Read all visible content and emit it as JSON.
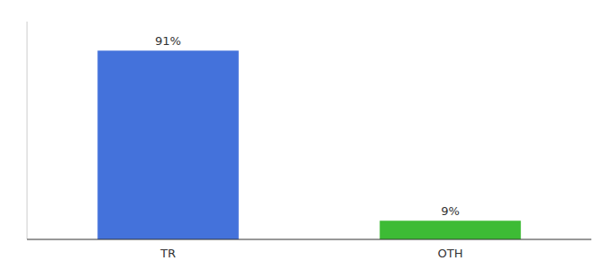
{
  "chart_data": {
    "type": "bar",
    "categories": [
      "TR",
      "OTH"
    ],
    "values": [
      91,
      9
    ],
    "value_labels": [
      "91%",
      "9%"
    ],
    "colors": [
      "#4472db",
      "#3dbb35"
    ],
    "ylim": [
      0,
      105
    ],
    "yticks": [],
    "grid": false,
    "data_labels": true,
    "tick_labels": "x"
  }
}
